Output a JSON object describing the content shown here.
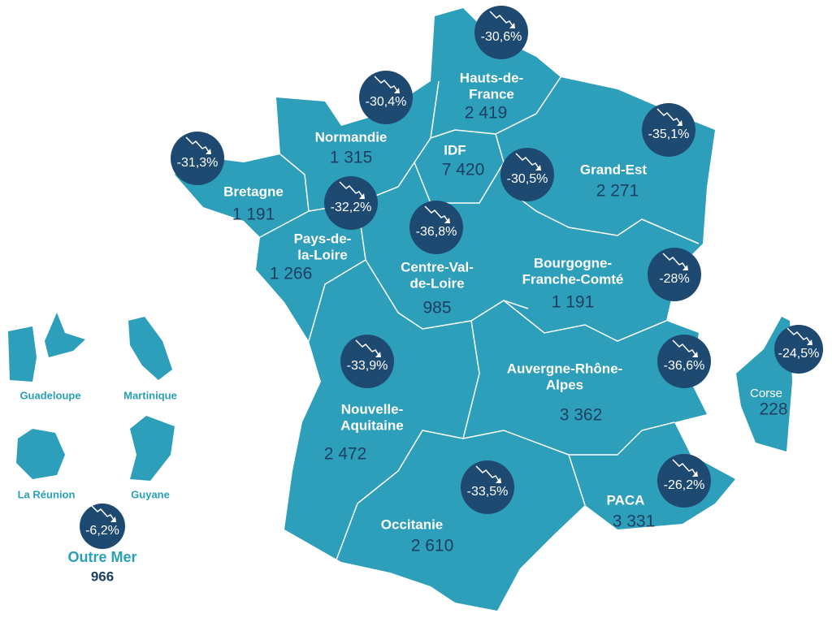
{
  "regions": [
    {
      "name": [
        "Hauts-de-",
        "France"
      ],
      "value": "2 419",
      "change": "-30,6%"
    },
    {
      "name": [
        "Normandie"
      ],
      "value": "1 315",
      "change": "-30,4%"
    },
    {
      "name": [
        "Bretagne"
      ],
      "value": "1 191",
      "change": "-31,3%"
    },
    {
      "name": [
        "Pays-de-",
        "la-Loire"
      ],
      "value": "1 266",
      "change": "-32,2%"
    },
    {
      "name": [
        "IDF"
      ],
      "value": "7 420",
      "change": "-30,5%"
    },
    {
      "name": [
        "Grand-Est"
      ],
      "value": "2 271",
      "change": "-35,1%"
    },
    {
      "name": [
        "Centre-Val-",
        "de-Loire"
      ],
      "value": "985",
      "change": "-36,8%"
    },
    {
      "name": [
        "Bourgogne-",
        "Franche-Comté"
      ],
      "value": "1 191",
      "change": "-28%"
    },
    {
      "name": [
        "Nouvelle-",
        "Aquitaine"
      ],
      "value": "2 472",
      "change": "-33,9%"
    },
    {
      "name": [
        "Auvergne-Rhône-",
        "Alpes"
      ],
      "value": "3 362",
      "change": "-36,6%"
    },
    {
      "name": [
        "Occitanie"
      ],
      "value": "2 610",
      "change": "-33,5%"
    },
    {
      "name": [
        "PACA"
      ],
      "value": "3 331",
      "change": "-26,2%"
    },
    {
      "name": [
        "Corse"
      ],
      "value": "228",
      "change": "-24,5%"
    }
  ],
  "outre_mer": {
    "territories": [
      "Guadeloupe",
      "Martinique",
      "La Réunion",
      "Guyane"
    ],
    "title": "Outre Mer",
    "value": "966",
    "change": "-6,2%"
  }
}
